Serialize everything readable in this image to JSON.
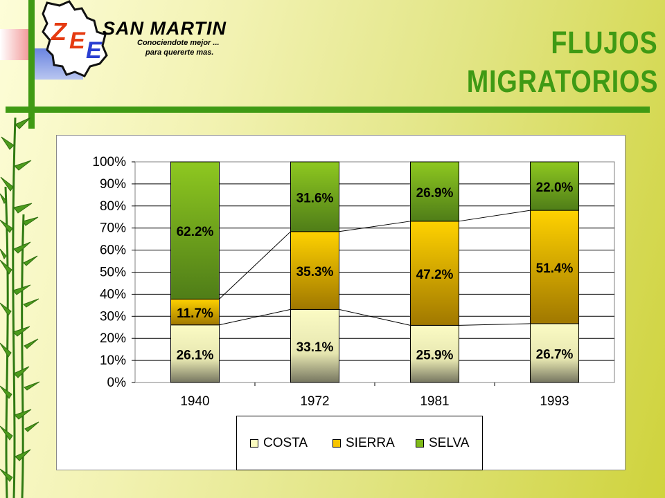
{
  "header": {
    "brand_name": "SAN MARTIN",
    "brand_tagline_1": "Conociendote mejor ...",
    "brand_tagline_2": "para quererte mas.",
    "logo_letters": [
      "Z",
      "E",
      "E"
    ],
    "title_line_1": "FLUJOS",
    "title_line_2": "MIGRATORIOS"
  },
  "colors": {
    "title": "#3f9a14",
    "costa": "#fbfbbf",
    "sierra": "#f7c400",
    "selva": "#7fba19",
    "background": "#e2e585"
  },
  "chart_data": {
    "type": "bar",
    "stacked": true,
    "percent_stacked": true,
    "categories": [
      "1940",
      "1972",
      "1981",
      "1993"
    ],
    "series": [
      {
        "name": "COSTA",
        "values": [
          26.1,
          33.1,
          25.9,
          26.7
        ],
        "labels": [
          "26.1%",
          "33.1%",
          "25.9%",
          "26.7%"
        ]
      },
      {
        "name": "SIERRA",
        "values": [
          11.7,
          35.3,
          47.2,
          51.4
        ],
        "labels": [
          "11.7%",
          "35.3%",
          "47.2%",
          "51.4%"
        ]
      },
      {
        "name": "SELVA",
        "values": [
          62.2,
          31.6,
          26.9,
          22.0
        ],
        "labels": [
          "62.2%",
          "31.6%",
          "26.9%",
          "22.0%"
        ]
      }
    ],
    "ylim": [
      0,
      100
    ],
    "y_ticks": [
      "0%",
      "10%",
      "20%",
      "30%",
      "40%",
      "50%",
      "60%",
      "70%",
      "80%",
      "90%",
      "100%"
    ],
    "grid": true,
    "series_lines": true,
    "legend": {
      "position": "bottom",
      "entries": [
        "COSTA",
        "SIERRA",
        "SELVA"
      ]
    }
  }
}
